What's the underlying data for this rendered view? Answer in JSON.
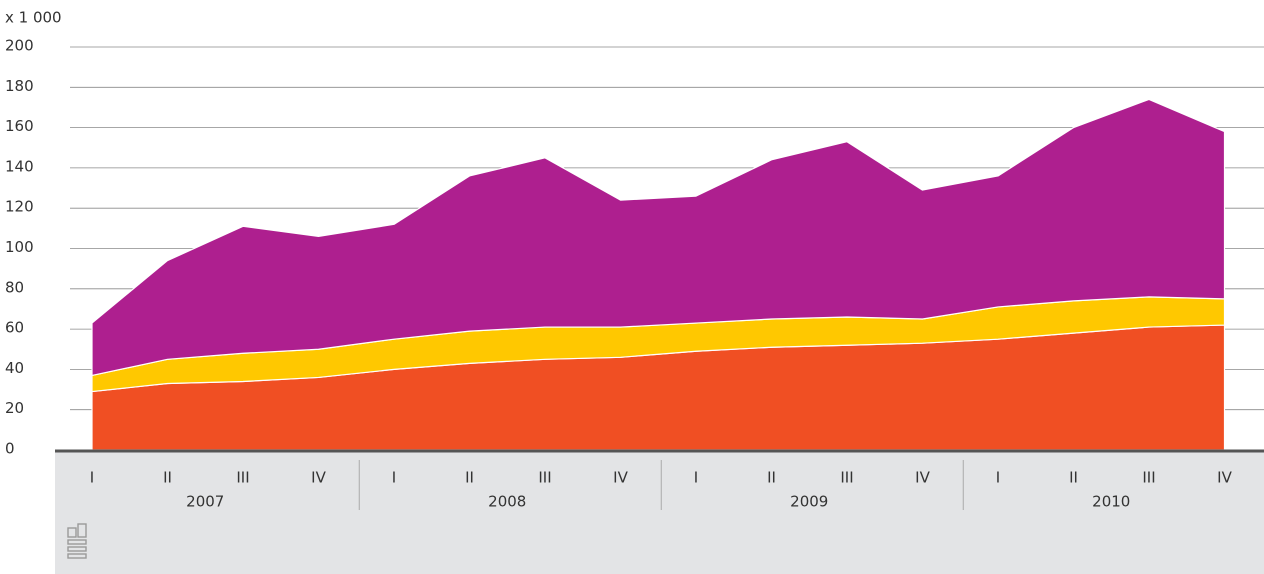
{
  "chart_data": {
    "type": "stacked-area",
    "y_axis_label": "x 1 000",
    "categories": [
      "I",
      "II",
      "III",
      "IV",
      "I",
      "II",
      "III",
      "IV",
      "I",
      "II",
      "III",
      "IV",
      "I",
      "II",
      "III",
      "IV"
    ],
    "years": [
      "2007",
      "2008",
      "2009",
      "2010"
    ],
    "series": [
      {
        "color": "#f04f23",
        "values": [
          29,
          33,
          34,
          36,
          40,
          43,
          45,
          46,
          49,
          51,
          52,
          53,
          55,
          58,
          61,
          62
        ]
      },
      {
        "color": "#ffc800",
        "values": [
          8,
          12,
          14,
          14,
          15,
          16,
          16,
          15,
          14,
          14,
          14,
          12,
          16,
          16,
          15,
          13
        ]
      },
      {
        "color": "#ae1f8f",
        "values": [
          26,
          49,
          63,
          56,
          57,
          77,
          84,
          63,
          63,
          79,
          87,
          64,
          65,
          86,
          98,
          83
        ]
      }
    ],
    "ylim": [
      0,
      200
    ],
    "yticks": [
      0,
      20,
      40,
      60,
      80,
      100,
      120,
      140,
      160,
      180,
      200
    ],
    "grid": true
  }
}
